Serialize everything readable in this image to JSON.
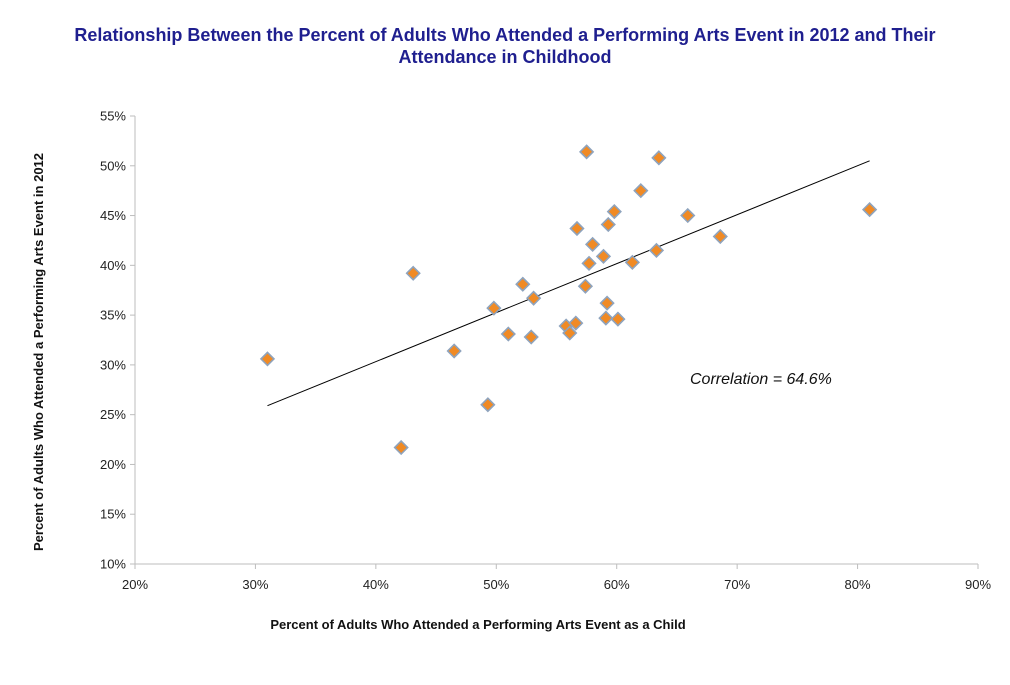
{
  "chart_data": {
    "type": "scatter",
    "title_lines": [
      "Relationship Between the Percent of Adults Who Attended a Performing Arts Event in 2012 and Their",
      "Attendance in Childhood"
    ],
    "xlabel": "Percent of Adults Who Attended a Performing Arts Event as a Child",
    "ylabel": "Percent of Adults Who Attended a Performing Arts Event in 2012",
    "xlim": [
      20,
      90
    ],
    "ylim": [
      10,
      55
    ],
    "x_ticks": [
      20,
      30,
      40,
      50,
      60,
      70,
      80,
      90
    ],
    "x_tick_labels": [
      "20%",
      "30%",
      "40%",
      "50%",
      "60%",
      "70%",
      "80%",
      "90%"
    ],
    "y_ticks": [
      10,
      15,
      20,
      25,
      30,
      35,
      40,
      45,
      50,
      55
    ],
    "y_tick_labels": [
      "10%",
      "15%",
      "20%",
      "25%",
      "30%",
      "35%",
      "40%",
      "45%",
      "50%",
      "55%"
    ],
    "grid": false,
    "marker": "diamond",
    "marker_color": "#f08a24",
    "marker_edge_color": "#8ea3bd",
    "points": [
      {
        "x": 31.0,
        "y": 30.6
      },
      {
        "x": 42.1,
        "y": 21.7
      },
      {
        "x": 43.1,
        "y": 39.2
      },
      {
        "x": 46.5,
        "y": 31.4
      },
      {
        "x": 49.3,
        "y": 26.0
      },
      {
        "x": 49.8,
        "y": 35.7
      },
      {
        "x": 51.0,
        "y": 33.1
      },
      {
        "x": 52.2,
        "y": 38.1
      },
      {
        "x": 52.9,
        "y": 32.8
      },
      {
        "x": 53.1,
        "y": 36.7
      },
      {
        "x": 55.8,
        "y": 33.9
      },
      {
        "x": 56.1,
        "y": 33.2
      },
      {
        "x": 56.6,
        "y": 34.2
      },
      {
        "x": 56.7,
        "y": 43.7
      },
      {
        "x": 57.4,
        "y": 37.9
      },
      {
        "x": 57.5,
        "y": 51.4
      },
      {
        "x": 57.7,
        "y": 40.2
      },
      {
        "x": 58.0,
        "y": 42.1
      },
      {
        "x": 58.9,
        "y": 40.9
      },
      {
        "x": 59.1,
        "y": 34.7
      },
      {
        "x": 59.2,
        "y": 36.2
      },
      {
        "x": 59.3,
        "y": 44.1
      },
      {
        "x": 59.8,
        "y": 45.4
      },
      {
        "x": 60.1,
        "y": 34.6
      },
      {
        "x": 61.3,
        "y": 40.3
      },
      {
        "x": 62.0,
        "y": 47.5
      },
      {
        "x": 63.3,
        "y": 41.5
      },
      {
        "x": 63.5,
        "y": 50.8
      },
      {
        "x": 65.9,
        "y": 45.0
      },
      {
        "x": 68.6,
        "y": 42.9
      },
      {
        "x": 81.0,
        "y": 45.6
      }
    ],
    "trendline": {
      "x": [
        31.0,
        81.0
      ],
      "y": [
        25.9,
        50.5
      ]
    },
    "annotation": "Correlation = 64.6%"
  }
}
